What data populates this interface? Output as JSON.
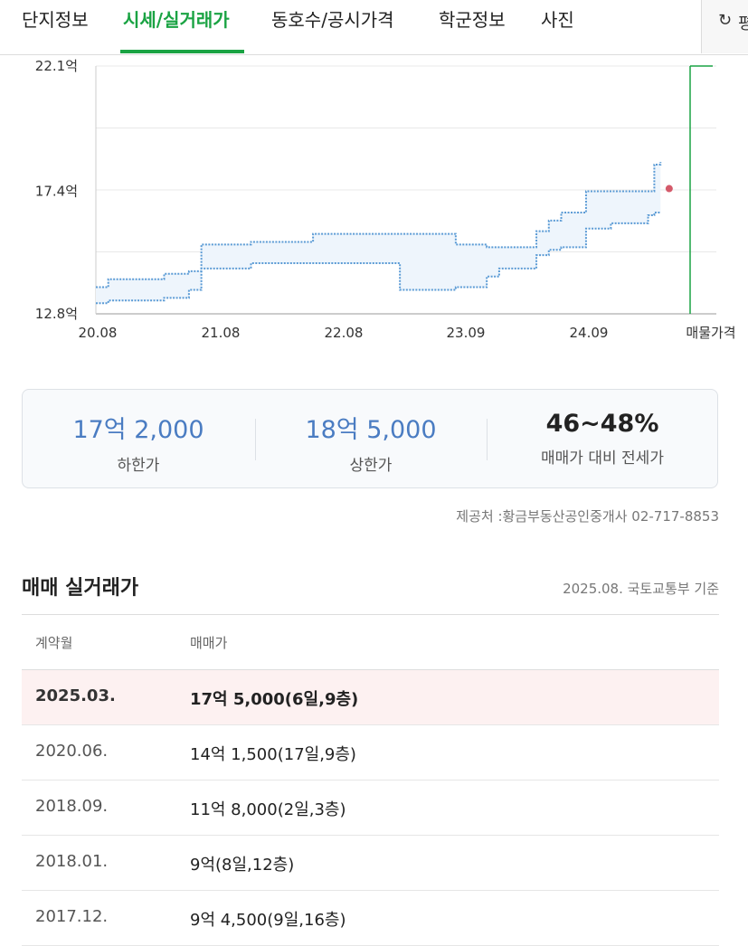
{
  "tabs": [
    {
      "label": "단지정보",
      "active": false
    },
    {
      "label": "시세/실거래가",
      "active": true
    },
    {
      "label": "동호수/공시가격",
      "active": false
    },
    {
      "label": "학군정보",
      "active": false
    },
    {
      "label": "사진",
      "active": false
    }
  ],
  "refresh": {
    "icon": "refresh-icon",
    "label": "평"
  },
  "chart_data": {
    "type": "area",
    "y_tick_labels": [
      "22.1억",
      "17.4억",
      "12.8억"
    ],
    "y_ticks": [
      22.1,
      17.4,
      12.8
    ],
    "ylim": [
      12.8,
      22.1
    ],
    "x_tick_labels": [
      "20.08",
      "21.08",
      "22.08",
      "23.09",
      "24.09"
    ],
    "x_extra_label": "매물가격",
    "grid": true,
    "series": [
      {
        "values_x": [
          2020.55,
          2020.65,
          2021.1,
          2021.3,
          2021.4,
          2021.8,
          2022.3,
          2022.5,
          2023.0,
          2023.4,
          2023.45,
          2023.6,
          2023.7,
          2023.8,
          2024.1,
          2024.2,
          2024.3,
          2024.5,
          2024.7,
          2025.0,
          2025.05,
          2025.1
        ],
        "values": [
          13.8,
          14.1,
          14.3,
          14.4,
          15.4,
          15.5,
          15.8,
          15.8,
          15.8,
          15.8,
          15.4,
          15.4,
          15.3,
          15.3,
          15.9,
          16.3,
          16.6,
          17.4,
          17.4,
          17.4,
          18.4,
          18.5
        ]
      },
      {
        "values_x": [
          2020.55,
          2020.65,
          2021.1,
          2021.3,
          2021.4,
          2021.8,
          2022.3,
          2022.5,
          2023.0,
          2023.4,
          2023.45,
          2023.6,
          2023.7,
          2023.8,
          2024.1,
          2024.2,
          2024.3,
          2024.5,
          2024.7,
          2025.0,
          2025.05,
          2025.1
        ],
        "values": [
          13.2,
          13.3,
          13.4,
          13.7,
          14.5,
          14.7,
          14.7,
          14.7,
          13.7,
          13.7,
          13.8,
          13.8,
          14.2,
          14.5,
          15.0,
          15.2,
          15.3,
          16.0,
          16.2,
          16.5,
          16.6,
          16.6
        ]
      }
    ],
    "transaction_point": {
      "x": 2025.17,
      "y": 17.5
    },
    "listing_marker": {
      "y": 22.1
    }
  },
  "summary": {
    "low": {
      "value": "17억 2,000",
      "label": "하한가"
    },
    "high": {
      "value": "18억 5,000",
      "label": "상한가"
    },
    "ratio": {
      "value": "46~48%",
      "label": "매매가 대비 전세가"
    }
  },
  "source": "제공처 :황금부동산공인중개사 02-717-8853",
  "section": {
    "title": "매매 실거래가",
    "note": "2025.08. 국토교통부 기준"
  },
  "table": {
    "headers": [
      "계약월",
      "매매가"
    ],
    "rows": [
      {
        "month": "2025.03.",
        "price": "17억 5,000(6일,9층)"
      },
      {
        "month": "2020.06.",
        "price": "14억 1,500(17일,9층)"
      },
      {
        "month": "2018.09.",
        "price": "11억 8,000(2일,3층)"
      },
      {
        "month": "2018.01.",
        "price": "9억(8일,12층)"
      },
      {
        "month": "2017.12.",
        "price": "9억 4,500(9일,16층)"
      }
    ]
  },
  "colors": {
    "accent": "#1aa343",
    "chart_line": "#5b9bd5",
    "band": "#eef5fc",
    "point": "#d45a6a",
    "summary_value": "#4a7cc2"
  }
}
